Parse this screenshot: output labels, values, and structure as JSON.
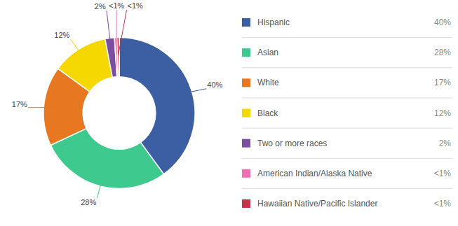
{
  "chart_data": {
    "type": "pie",
    "categories": [
      "Hispanic",
      "Asian",
      "White",
      "Black",
      "Two or more races",
      "American Indian/Alaska Native",
      "Hawaiian Native/Pacific Islander"
    ],
    "values": [
      40,
      28,
      17,
      12,
      2,
      0.5,
      0.5
    ],
    "value_labels": [
      "40%",
      "28%",
      "17%",
      "12%",
      "2%",
      "<1%",
      "<1%"
    ],
    "colors": [
      "#3c5fa3",
      "#3ec98e",
      "#e87722",
      "#f5d800",
      "#7b4ea0",
      "#f06eb4",
      "#c0364a"
    ],
    "data_labels": true,
    "legend": "right"
  }
}
